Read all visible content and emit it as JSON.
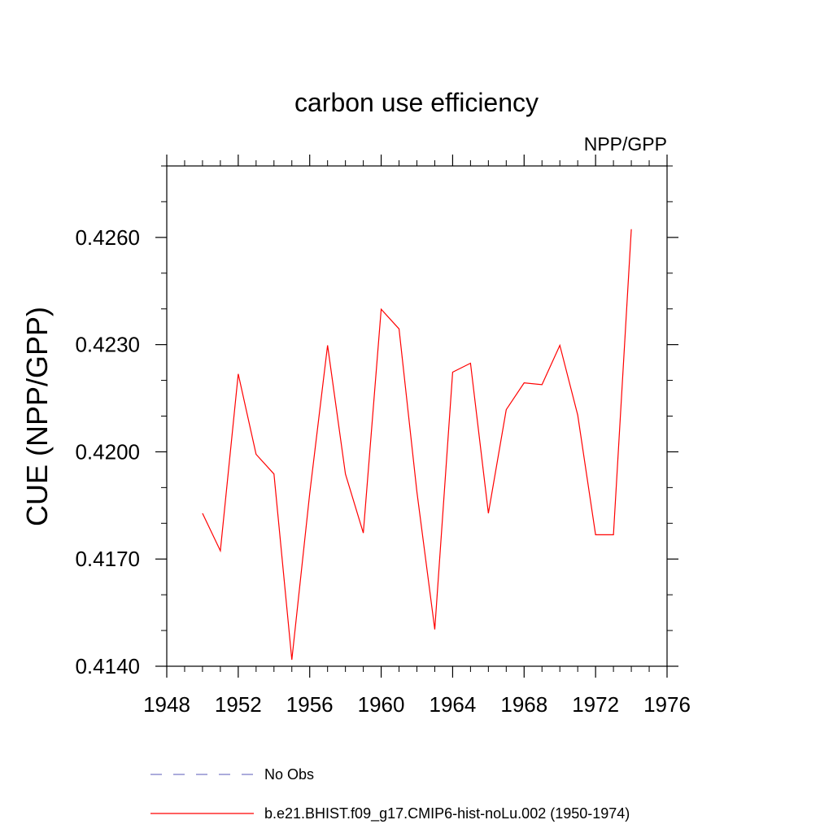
{
  "chart_data": {
    "type": "line",
    "title": "carbon use efficiency",
    "subtitle": "NPP/GPP",
    "xlabel": "",
    "ylabel": "CUE  (NPP/GPP)",
    "xlim": [
      1948,
      1976
    ],
    "ylim": [
      0.414,
      0.428
    ],
    "x_ticks": [
      1948,
      1952,
      1956,
      1960,
      1964,
      1968,
      1972,
      1976
    ],
    "x_tick_labels": [
      "1948",
      "1952",
      "1956",
      "1960",
      "1964",
      "1968",
      "1972",
      "1976"
    ],
    "y_ticks": [
      0.414,
      0.417,
      0.42,
      0.423,
      0.426
    ],
    "y_tick_labels": [
      "0.4140",
      "0.4170",
      "0.4200",
      "0.4230",
      "0.4260"
    ],
    "grid": false,
    "legend_position": "bottom",
    "series": [
      {
        "name": "No Obs",
        "color": "#7b7bc8",
        "style": "dashed",
        "x": [],
        "y": []
      },
      {
        "name": "b.e21.BHIST.f09_g17.CMIP6-hist-noLu.002 (1950-1974)",
        "color": "#ff0000",
        "style": "solid",
        "x": [
          1950,
          1951,
          1952,
          1953,
          1954,
          1955,
          1956,
          1957,
          1958,
          1959,
          1960,
          1961,
          1962,
          1963,
          1964,
          1965,
          1966,
          1967,
          1968,
          1969,
          1970,
          1971,
          1972,
          1973,
          1974
        ],
        "y": [
          0.41828,
          0.41723,
          0.42218,
          0.41993,
          0.41938,
          0.41418,
          0.41883,
          0.42298,
          0.41938,
          0.41773,
          0.42399,
          0.42344,
          0.41888,
          0.41503,
          0.42223,
          0.42248,
          0.41828,
          0.42118,
          0.42193,
          0.42188,
          0.42298,
          0.42103,
          0.41768,
          0.41768,
          0.42623
        ]
      }
    ]
  }
}
